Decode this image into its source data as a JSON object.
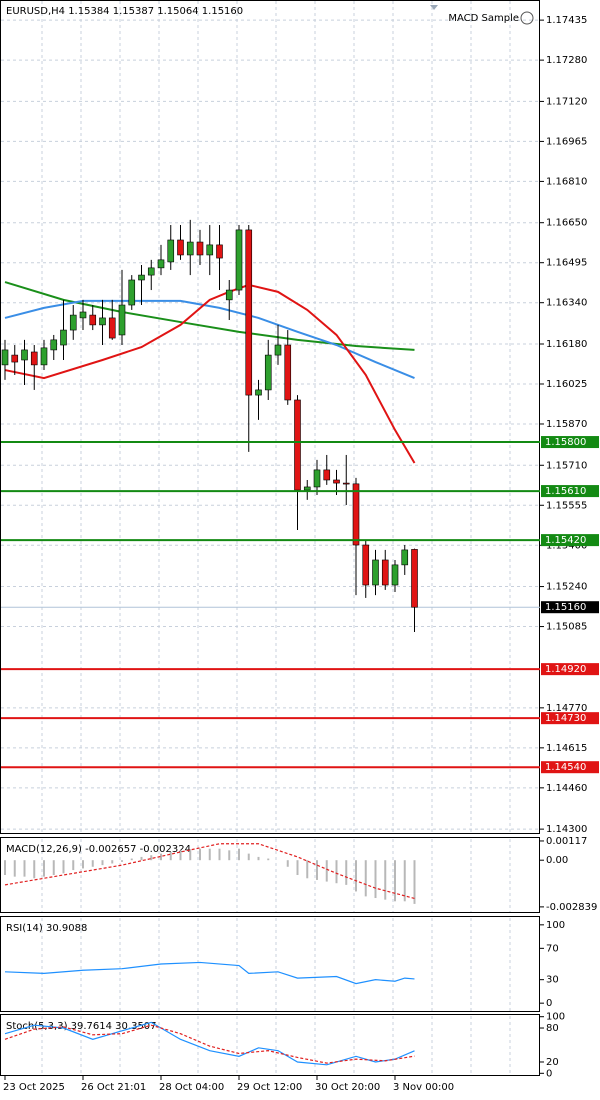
{
  "chart_data": [
    {
      "type": "candlestick",
      "title": "EURUSD,H4  1.15384 1.15387 1.15064 1.15160",
      "indicator": "MACD Sample",
      "categories": [
        "23 Oct 2025",
        null,
        null,
        null,
        null,
        null,
        null,
        null,
        "26 Oct 21:01",
        null,
        null,
        null,
        null,
        null,
        null,
        null,
        "28 Oct 04:00",
        null,
        null,
        null,
        null,
        null,
        null,
        null,
        "29 Oct 12:00",
        null,
        null,
        null,
        null,
        null,
        null,
        null,
        "30 Oct 20:00",
        null,
        null,
        null,
        null,
        null,
        null,
        null,
        "3 Nov 00:00",
        null,
        null
      ],
      "open": [
        1.16099,
        1.16137,
        1.16118,
        1.16149,
        1.16099,
        1.16157,
        1.16176,
        1.16234,
        1.16281,
        1.16292,
        1.16254,
        1.16281,
        1.16215,
        1.16331,
        1.16428,
        1.16447,
        1.16475,
        1.16498,
        1.16583,
        1.16525,
        1.16575,
        1.16525,
        1.16564,
        1.16351,
        1.16389,
        1.16622,
        1.15982,
        1.16002,
        1.16137,
        1.16176,
        1.15963,
        1.15614,
        1.15626,
        1.15692,
        1.15653,
        1.15641,
        1.15638,
        1.15401,
        1.15246,
        1.15343,
        1.15246,
        1.15324,
        1.15384
      ],
      "high": [
        1.16196,
        1.16176,
        1.16196,
        1.16176,
        1.16196,
        1.16215,
        1.16351,
        1.16331,
        1.16351,
        1.16331,
        1.16351,
        1.16351,
        1.16467,
        1.16447,
        1.16486,
        1.16506,
        1.16564,
        1.16641,
        1.16641,
        1.16661,
        1.16622,
        1.16641,
        1.16641,
        1.16428,
        1.16641,
        1.16641,
        1.16041,
        1.16196,
        1.16254,
        1.16234,
        1.15982,
        1.15653,
        1.15731,
        1.1575,
        1.15692,
        1.1575,
        1.15661,
        1.15421,
        1.15382,
        1.15382,
        1.15343,
        1.15401,
        1.15387
      ],
      "low": [
        1.16041,
        1.1606,
        1.16021,
        1.16002,
        1.16079,
        1.16118,
        1.16118,
        1.16196,
        1.16234,
        1.16234,
        1.16176,
        1.16196,
        1.16176,
        1.16312,
        1.16331,
        1.16389,
        1.16447,
        1.16467,
        1.16506,
        1.16447,
        1.16486,
        1.16447,
        1.16389,
        1.16273,
        1.1637,
        1.15762,
        1.15886,
        1.15963,
        1.16099,
        1.15944,
        1.15459,
        1.15576,
        1.15595,
        1.15634,
        1.15595,
        1.15556,
        1.15207,
        1.15196,
        1.15207,
        1.15227,
        1.15219,
        1.15285,
        1.15064
      ],
      "close": [
        1.16157,
        1.1611,
        1.16157,
        1.16099,
        1.16165,
        1.16196,
        1.16234,
        1.16292,
        1.16304,
        1.16254,
        1.16281,
        1.16203,
        1.16331,
        1.16428,
        1.16447,
        1.16475,
        1.16506,
        1.16583,
        1.16525,
        1.16575,
        1.16525,
        1.16564,
        1.16513,
        1.16389,
        1.16622,
        1.15982,
        1.16002,
        1.16137,
        1.16176,
        1.15963,
        1.15614,
        1.15626,
        1.15692,
        1.15653,
        1.15641,
        1.15638,
        1.15401,
        1.15246,
        1.15343,
        1.15246,
        1.15324,
        1.15382,
        1.1516
      ],
      "up_color": "#2ea02e",
      "down_color": "#e01414",
      "series": [
        {
          "color": "#1a8f1a",
          "x": [
            0,
            6,
            12,
            18,
            24,
            30,
            36,
            42
          ],
          "values": [
            1.1642,
            1.16351,
            1.16304,
            1.16265,
            1.16227,
            1.16196,
            1.16172,
            1.16157
          ]
        },
        {
          "color": "#3a8ee6",
          "x": [
            0,
            4,
            8,
            18,
            22,
            26,
            30,
            34,
            38,
            42
          ],
          "values": [
            1.16281,
            1.1632,
            1.16347,
            1.16347,
            1.1632,
            1.16281,
            1.16227,
            1.16176,
            1.1611,
            1.16048
          ]
        },
        {
          "color": "#e01414",
          "x": [
            0,
            4,
            10,
            14,
            18,
            21,
            23,
            25,
            28,
            31,
            34,
            37,
            40,
            42
          ],
          "values": [
            1.16079,
            1.16048,
            1.16118,
            1.16168,
            1.16254,
            1.16351,
            1.16382,
            1.16409,
            1.16382,
            1.16312,
            1.16215,
            1.1606,
            1.15847,
            1.15719
          ]
        }
      ],
      "levels": [
        {
          "value": 1.158,
          "label": "1.15800",
          "color": "#138a13"
        },
        {
          "value": 1.1561,
          "label": "1.15610",
          "color": "#138a13"
        },
        {
          "value": 1.1542,
          "label": "1.15420",
          "color": "#138a13"
        },
        {
          "value": 1.1492,
          "label": "1.14920",
          "color": "#e01414"
        },
        {
          "value": 1.1473,
          "label": "1.14730",
          "color": "#e01414"
        },
        {
          "value": 1.1454,
          "label": "1.14540",
          "color": "#e01414"
        }
      ],
      "last": {
        "value": 1.1516,
        "label": "1.15160"
      },
      "ylim": [
        1.14285,
        1.17513
      ],
      "yticks": [
        1.17435,
        {
          "value": 1.1728,
          "label": "1.17280"
        },
        {
          "value": 1.1712,
          "label": "1.17120"
        },
        1.16965,
        {
          "value": 1.1681,
          "label": "1.16810"
        },
        {
          "value": 1.1665,
          "label": "1.16650"
        },
        1.16495,
        {
          "value": 1.1634,
          "label": "1.16340"
        },
        {
          "value": 1.1618,
          "label": "1.16180"
        },
        1.16025,
        {
          "value": 1.1587,
          "label": "1.15870"
        },
        {
          "value": 1.1571,
          "label": "1.15710"
        },
        1.15555,
        {
          "value": 1.154,
          "label": "1.15400"
        },
        {
          "value": 1.1524,
          "label": "1.15240"
        },
        1.15085,
        {
          "value": 1.1477,
          "label": "1.14770"
        },
        1.14615,
        {
          "value": 1.1446,
          "label": "1.14460"
        },
        {
          "value": 1.143,
          "label": "1.14300"
        }
      ],
      "grid": true
    },
    {
      "type": "bar",
      "title": "MACD(12,26,9) -0.002657 -0.002324",
      "values": [
        -0.0009,
        -0.001,
        -0.001,
        -0.0011,
        -0.001,
        -0.0009,
        -0.0008,
        -0.0006,
        -0.0005,
        -0.0004,
        -0.0003,
        -0.0002,
        -0.0001,
        0.0001,
        0.0002,
        0.0003,
        0.0004,
        0.0005,
        0.0006,
        0.0006,
        0.0007,
        0.0007,
        0.0007,
        0.0006,
        0.0007,
        0.0004,
        0.0002,
        0.0001,
        0,
        -0.0004,
        -0.0009,
        -0.0011,
        -0.0012,
        -0.0013,
        -0.0014,
        -0.0015,
        -0.0019,
        -0.0022,
        -0.0023,
        -0.0024,
        -0.0025,
        -0.0025,
        -0.002657
      ],
      "color": "#b8b8b8",
      "series": [
        {
          "color": "#e02020",
          "dashed": true,
          "x": [
            0,
            6,
            12,
            18,
            22,
            26,
            30,
            34,
            38,
            42
          ],
          "values": [
            -0.0015,
            -0.0009,
            -0.0003,
            0.0005,
            0.001,
            0.001,
            0.0002,
            -0.0008,
            -0.0017,
            -0.002324
          ]
        }
      ],
      "ylim": [
        -0.00315,
        0.00135
      ],
      "yticks": [
        0.00117,
        {
          "value": 0,
          "label": "0.00"
        },
        -0.002839
      ]
    },
    {
      "type": "line",
      "title": "RSI(14) 30.9088",
      "series": [
        {
          "color": "#1e90ff",
          "x": [
            0,
            4,
            8,
            12,
            16,
            20,
            24,
            25,
            28,
            30,
            34,
            36,
            38,
            40,
            41,
            42
          ],
          "values": [
            40,
            38,
            42,
            44,
            50,
            52,
            48,
            38,
            40,
            32,
            34,
            25,
            30,
            28,
            32,
            30.9088
          ]
        }
      ],
      "ylim": [
        -10,
        110
      ],
      "yticks": [
        100,
        70,
        30,
        0
      ]
    },
    {
      "type": "line",
      "title": "Stoch(5,3,3) 39.7614 30.3507",
      "series": [
        {
          "color": "#1e90ff",
          "x": [
            0,
            3,
            6,
            9,
            12,
            15,
            18,
            21,
            24,
            26,
            28,
            30,
            33,
            36,
            38,
            40,
            42
          ],
          "values": [
            70,
            85,
            80,
            60,
            75,
            90,
            60,
            40,
            30,
            45,
            40,
            20,
            15,
            30,
            20,
            25,
            39.7614
          ]
        },
        {
          "color": "#e02020",
          "dashed": true,
          "x": [
            0,
            3,
            6,
            9,
            12,
            15,
            18,
            21,
            24,
            27,
            30,
            33,
            36,
            39,
            42
          ],
          "values": [
            60,
            78,
            82,
            68,
            70,
            85,
            70,
            48,
            35,
            40,
            28,
            18,
            25,
            22,
            30.3507
          ]
        }
      ],
      "ylim": [
        -3,
        103
      ],
      "yticks": [
        100,
        80,
        20,
        0
      ]
    }
  ]
}
